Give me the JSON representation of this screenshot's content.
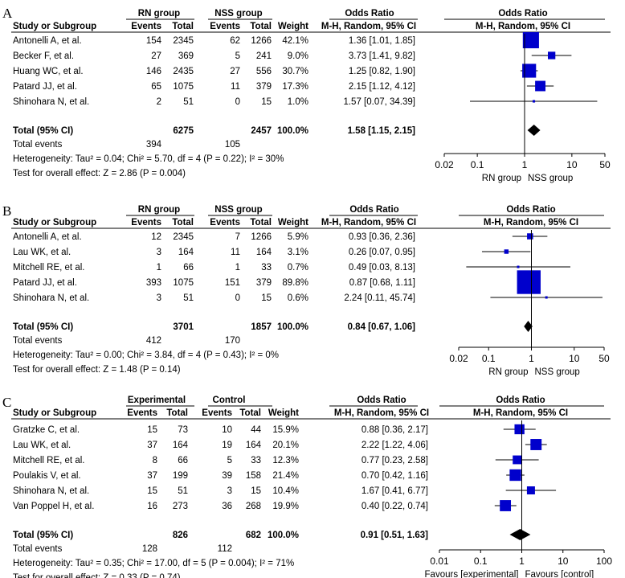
{
  "chart_data": [
    {
      "type": "forest",
      "panel": "A",
      "group1_label": "RN group",
      "group2_label": "NSS group",
      "columns": [
        "Study or Subgroup",
        "Events",
        "Total",
        "Events",
        "Total",
        "Weight",
        "M-H, Random, 95% CI",
        "M-H, Random, 95% CI"
      ],
      "header_top_or": "Odds Ratio",
      "header_top_or_plot": "Odds Ratio",
      "studies": [
        {
          "study": "Antonelli A, et al.",
          "e1": "154",
          "n1": "2345",
          "e2": "62",
          "n2": "1266",
          "weight": "42.1%",
          "ci_text": "1.36 [1.01, 1.85]",
          "or": 1.36,
          "lo": 1.01,
          "hi": 1.85
        },
        {
          "study": "Becker F, et al.",
          "e1": "27",
          "n1": "369",
          "e2": "5",
          "n2": "241",
          "weight": "9.0%",
          "ci_text": "3.73 [1.41, 9.82]",
          "or": 3.73,
          "lo": 1.41,
          "hi": 9.82
        },
        {
          "study": "Huang WC, et al.",
          "e1": "146",
          "n1": "2435",
          "e2": "27",
          "n2": "556",
          "weight": "30.7%",
          "ci_text": "1.25 [0.82, 1.90]",
          "or": 1.25,
          "lo": 0.82,
          "hi": 1.9
        },
        {
          "study": "Patard JJ, et al.",
          "e1": "65",
          "n1": "1075",
          "e2": "11",
          "n2": "379",
          "weight": "17.3%",
          "ci_text": "2.15 [1.12, 4.12]",
          "or": 2.15,
          "lo": 1.12,
          "hi": 4.12
        },
        {
          "study": "Shinohara N, et al.",
          "e1": "2",
          "n1": "51",
          "e2": "0",
          "n2": "15",
          "weight": "1.0%",
          "ci_text": "1.57 [0.07, 34.39]",
          "or": 1.57,
          "lo": 0.07,
          "hi": 34.39
        }
      ],
      "total": {
        "label": "Total (95% CI)",
        "n1": "6275",
        "n2": "2457",
        "weight": "100.0%",
        "ci_text": "1.58 [1.15, 2.15]",
        "or": 1.58,
        "lo": 1.15,
        "hi": 2.15
      },
      "total_events": {
        "label": "Total events",
        "e1": "394",
        "e2": "105"
      },
      "heterogeneity": "Heterogeneity: Tau² = 0.04; Chi² = 5.70, df = 4 (P = 0.22); I² = 30%",
      "overall_effect": "Test for overall effect: Z = 2.86 (P = 0.004)",
      "axis": {
        "scale": "log",
        "ticks": [
          0.02,
          0.1,
          1,
          10,
          50
        ],
        "tick_labels": [
          "0.02",
          "0.1",
          "1",
          "10",
          "50"
        ],
        "xlim": [
          0.02,
          50
        ]
      },
      "favours_left": "RN group",
      "favours_right": "NSS group"
    },
    {
      "type": "forest",
      "panel": "B",
      "group1_label": "RN group",
      "group2_label": "NSS group",
      "columns": [
        "Study or Subgroup",
        "Events",
        "Total",
        "Events",
        "Total",
        "Weight",
        "M-H, Random, 95% CI",
        "M-H, Random, 95% CI"
      ],
      "header_top_or": "Odds Ratio",
      "header_top_or_plot": "Odds Ratio",
      "studies": [
        {
          "study": "Antonelli A, et al.",
          "e1": "12",
          "n1": "2345",
          "e2": "7",
          "n2": "1266",
          "weight": "5.9%",
          "ci_text": "0.93 [0.36, 2.36]",
          "or": 0.93,
          "lo": 0.36,
          "hi": 2.36
        },
        {
          "study": "Lau WK, et al.",
          "e1": "3",
          "n1": "164",
          "e2": "11",
          "n2": "164",
          "weight": "3.1%",
          "ci_text": "0.26 [0.07, 0.95]",
          "or": 0.26,
          "lo": 0.07,
          "hi": 0.95
        },
        {
          "study": "Mitchell RE, et al.",
          "e1": "1",
          "n1": "66",
          "e2": "1",
          "n2": "33",
          "weight": "0.7%",
          "ci_text": "0.49 [0.03, 8.13]",
          "or": 0.49,
          "lo": 0.03,
          "hi": 8.13
        },
        {
          "study": "Patard JJ, et al.",
          "e1": "393",
          "n1": "1075",
          "e2": "151",
          "n2": "379",
          "weight": "89.8%",
          "ci_text": "0.87 [0.68, 1.11]",
          "or": 0.87,
          "lo": 0.68,
          "hi": 1.11
        },
        {
          "study": "Shinohara N, et al.",
          "e1": "3",
          "n1": "51",
          "e2": "0",
          "n2": "15",
          "weight": "0.6%",
          "ci_text": "2.24 [0.11, 45.74]",
          "or": 2.24,
          "lo": 0.11,
          "hi": 45.74
        }
      ],
      "total": {
        "label": "Total (95% CI)",
        "n1": "3701",
        "n2": "1857",
        "weight": "100.0%",
        "ci_text": "0.84 [0.67, 1.06]",
        "or": 0.84,
        "lo": 0.67,
        "hi": 1.06
      },
      "total_events": {
        "label": "Total events",
        "e1": "412",
        "e2": "170"
      },
      "heterogeneity": "Heterogeneity: Tau² = 0.00; Chi² = 3.84, df = 4 (P = 0.43); I² = 0%",
      "overall_effect": "Test for overall effect: Z = 1.48 (P = 0.14)",
      "axis": {
        "scale": "log",
        "ticks": [
          0.02,
          0.1,
          1,
          10,
          50
        ],
        "tick_labels": [
          "0.02",
          "0.1",
          "1",
          "10",
          "50"
        ],
        "xlim": [
          0.02,
          50
        ]
      },
      "favours_left": "RN group",
      "favours_right": "NSS group"
    },
    {
      "type": "forest",
      "panel": "C",
      "group1_label": "Experimental",
      "group2_label": "Control",
      "columns": [
        "Study or Subgroup",
        "Events",
        "Total",
        "Events",
        "Total",
        "Weight",
        "M-H, Random, 95% CI",
        "M-H, Random, 95% CI"
      ],
      "header_top_or": "Odds Ratio",
      "header_top_or_plot": "Odds Ratio",
      "studies": [
        {
          "study": "Gratzke C, et al.",
          "e1": "15",
          "n1": "73",
          "e2": "10",
          "n2": "44",
          "weight": "15.9%",
          "ci_text": "0.88 [0.36, 2.17]",
          "or": 0.88,
          "lo": 0.36,
          "hi": 2.17
        },
        {
          "study": "Lau WK, et al.",
          "e1": "37",
          "n1": "164",
          "e2": "19",
          "n2": "164",
          "weight": "20.1%",
          "ci_text": "2.22 [1.22, 4.06]",
          "or": 2.22,
          "lo": 1.22,
          "hi": 4.06
        },
        {
          "study": "Mitchell RE, et al.",
          "e1": "8",
          "n1": "66",
          "e2": "5",
          "n2": "33",
          "weight": "12.3%",
          "ci_text": "0.77 [0.23, 2.58]",
          "or": 0.77,
          "lo": 0.23,
          "hi": 2.58
        },
        {
          "study": "Poulakis V, et al.",
          "e1": "37",
          "n1": "199",
          "e2": "39",
          "n2": "158",
          "weight": "21.4%",
          "ci_text": "0.70 [0.42, 1.16]",
          "or": 0.7,
          "lo": 0.42,
          "hi": 1.16
        },
        {
          "study": "Shinohara N, et al.",
          "e1": "15",
          "n1": "51",
          "e2": "3",
          "n2": "15",
          "weight": "10.4%",
          "ci_text": "1.67 [0.41, 6.77]",
          "or": 1.67,
          "lo": 0.41,
          "hi": 6.77
        },
        {
          "study": "Van Poppel H, et al.",
          "e1": "16",
          "n1": "273",
          "e2": "36",
          "n2": "268",
          "weight": "19.9%",
          "ci_text": "0.40 [0.22, 0.74]",
          "or": 0.4,
          "lo": 0.22,
          "hi": 0.74
        }
      ],
      "total": {
        "label": "Total (95% CI)",
        "n1": "826",
        "n2": "682",
        "weight": "100.0%",
        "ci_text": "0.91 [0.51, 1.63]",
        "or": 0.91,
        "lo": 0.51,
        "hi": 1.63
      },
      "total_events": {
        "label": "Total events",
        "e1": "128",
        "e2": "112"
      },
      "heterogeneity": "Heterogeneity: Tau² = 0.35; Chi² = 17.00, df = 5 (P = 0.004); I² = 71%",
      "overall_effect": "Test for overall effect: Z = 0.33 (P = 0.74)",
      "axis": {
        "scale": "log",
        "ticks": [
          0.01,
          0.1,
          1,
          10,
          100
        ],
        "tick_labels": [
          "0.01",
          "0.1",
          "1",
          "10",
          "100"
        ],
        "xlim": [
          0.01,
          100
        ]
      },
      "favours_left": "Favours [experimental]",
      "favours_right": "Favours [control]"
    }
  ],
  "colors": {
    "marker": "#0000cc",
    "line": "#000000",
    "diamond": "#000000",
    "text": "#000000"
  }
}
